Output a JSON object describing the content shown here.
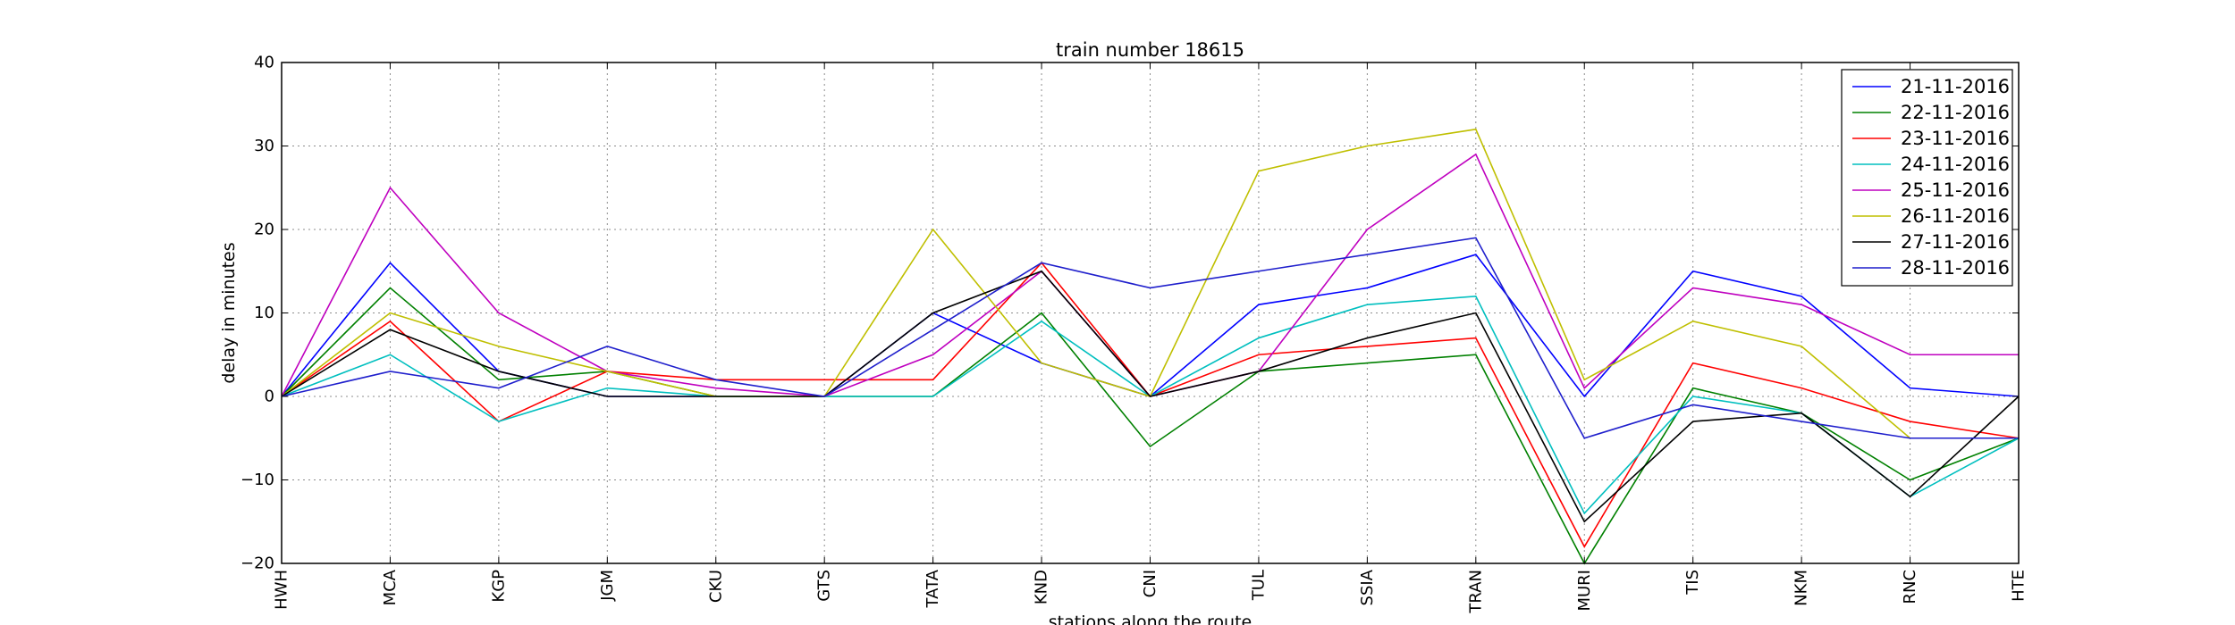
{
  "chart_data": {
    "type": "line",
    "title": "train number 18615",
    "xlabel": "stations along the route",
    "ylabel": "delay in minutes",
    "categories": [
      "HWH",
      "MCA",
      "KGP",
      "JGM",
      "CKU",
      "GTS",
      "TATA",
      "KND",
      "CNI",
      "TUL",
      "SSIA",
      "TRAN",
      "MURI",
      "TIS",
      "NKM",
      "RNC",
      "HTE"
    ],
    "ylim": [
      -20,
      40
    ],
    "yticks": [
      -20,
      -10,
      0,
      10,
      20,
      30,
      40
    ],
    "ytick_labels": [
      "−20",
      "−10",
      "0",
      "10",
      "20",
      "30",
      "40"
    ],
    "grid": true,
    "legend_position": "top-right",
    "series": [
      {
        "name": "21-11-2016",
        "color": "#0000ff",
        "values": [
          0,
          16,
          3,
          0,
          0,
          0,
          10,
          4,
          0,
          11,
          13,
          17,
          0,
          15,
          12,
          1,
          0
        ]
      },
      {
        "name": "22-11-2016",
        "color": "#008000",
        "values": [
          0,
          13,
          2,
          3,
          0,
          0,
          0,
          10,
          -6,
          3,
          4,
          5,
          -20,
          1,
          -2,
          -10,
          -5
        ]
      },
      {
        "name": "23-11-2016",
        "color": "#ff0000",
        "values": [
          0,
          9,
          -3,
          3,
          2,
          2,
          2,
          16,
          0,
          5,
          6,
          7,
          -18,
          4,
          1,
          -3,
          -5
        ]
      },
      {
        "name": "24-11-2016",
        "color": "#00bfbf",
        "values": [
          0,
          5,
          -3,
          1,
          0,
          0,
          0,
          9,
          0,
          7,
          11,
          12,
          -14,
          0,
          -2,
          -12,
          -5
        ]
      },
      {
        "name": "25-11-2016",
        "color": "#bf00bf",
        "values": [
          0,
          25,
          10,
          3,
          1,
          0,
          5,
          15,
          0,
          3,
          20,
          29,
          1,
          13,
          11,
          5,
          5
        ]
      },
      {
        "name": "26-11-2016",
        "color": "#bfbf00",
        "values": [
          0,
          10,
          6,
          3,
          0,
          0,
          20,
          4,
          0,
          27,
          30,
          32,
          2,
          9,
          6,
          -5,
          -5
        ]
      },
      {
        "name": "27-11-2016",
        "color": "#000000",
        "values": [
          0,
          8,
          3,
          0,
          0,
          0,
          10,
          15,
          0,
          3,
          7,
          10,
          -15,
          -3,
          -2,
          -12,
          0
        ]
      },
      {
        "name": "28-11-2016",
        "color": "#1f1fcc",
        "values": [
          0,
          3,
          1,
          6,
          2,
          0,
          8,
          16,
          13,
          15,
          17,
          19,
          -5,
          -1,
          -3,
          -5,
          -5
        ]
      }
    ]
  }
}
